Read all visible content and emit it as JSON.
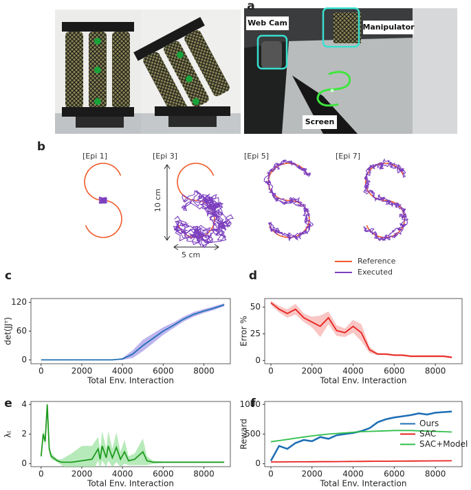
{
  "panel_labels": [
    "a",
    "b",
    "c",
    "d",
    "e",
    "f"
  ],
  "photo": {
    "labels": [
      "Web Cam",
      "Manipulator",
      "Screen"
    ]
  },
  "trajectories": {
    "episodes": [
      "[Epi 1]",
      "[Epi 3]",
      "[Epi 5]",
      "[Epi 7]"
    ],
    "height_label": "10 cm",
    "width_label": "5 cm",
    "legend": [
      {
        "name": "Reference",
        "color": "#f05a28"
      },
      {
        "name": "Executed",
        "color": "#7b3fbf"
      }
    ]
  },
  "chart_data": [
    {
      "type": "line",
      "xlabel": "Total Env. Interaction",
      "ylabel": "det(JJᵀ)",
      "x": [
        0,
        500,
        1000,
        1500,
        2000,
        2500,
        3000,
        3500,
        4000,
        4500,
        5000,
        5500,
        6000,
        6500,
        7000,
        7500,
        8000,
        8500,
        9000
      ],
      "series": [
        {
          "color": "#1f6fb5",
          "band_color": "#a89be8",
          "values": [
            0,
            0,
            0,
            0,
            0,
            0,
            0,
            0,
            2,
            12,
            30,
            45,
            60,
            72,
            85,
            95,
            102,
            108,
            115
          ],
          "spread": [
            0,
            0,
            0,
            0,
            0,
            0,
            0,
            0,
            2,
            8,
            12,
            10,
            8,
            6,
            5,
            5,
            4,
            4,
            3
          ]
        }
      ],
      "xlim": [
        -500,
        9300
      ],
      "xticks": [
        0,
        2000,
        4000,
        6000,
        8000
      ],
      "ylim": [
        -8,
        128
      ],
      "yticks": [
        0,
        60,
        120
      ]
    },
    {
      "type": "line",
      "xlabel": "Total Env. Interaction",
      "ylabel": "Error %",
      "x": [
        0,
        400,
        800,
        1200,
        1600,
        2000,
        2400,
        2800,
        3200,
        3600,
        4000,
        4400,
        4800,
        5200,
        5600,
        6000,
        6400,
        6800,
        7200,
        7600,
        8000,
        8400,
        8800
      ],
      "series": [
        {
          "color": "#e8201c",
          "band_color": "#f7b3b0",
          "values": [
            54,
            48,
            44,
            48,
            40,
            36,
            32,
            40,
            28,
            26,
            32,
            26,
            10,
            6,
            6,
            5,
            5,
            4,
            4,
            4,
            4,
            4,
            3
          ],
          "spread": [
            2,
            3,
            4,
            5,
            4,
            5,
            10,
            6,
            5,
            4,
            6,
            8,
            3,
            1,
            1,
            1,
            1,
            1,
            1,
            1,
            1,
            1,
            1
          ]
        }
      ],
      "xlim": [
        -300,
        9300
      ],
      "xticks": [
        0,
        2000,
        4000,
        6000,
        8000
      ],
      "ylim": [
        -3,
        58
      ],
      "yticks": [
        0,
        25,
        50
      ]
    },
    {
      "type": "line",
      "xlabel": "Total Env. Interaction",
      "ylabel": "λₜ",
      "x": [
        0,
        100,
        200,
        300,
        400,
        500,
        800,
        1000,
        1500,
        2000,
        2500,
        2800,
        2900,
        3000,
        3200,
        3300,
        3500,
        3700,
        3900,
        4100,
        4300,
        4600,
        5000,
        5200,
        5500,
        6000,
        7000,
        8000,
        9000
      ],
      "series": [
        {
          "color": "#1e9a1e",
          "band_color": "#9fe3a3",
          "values": [
            0.5,
            2,
            1.5,
            4,
            1,
            0.5,
            0.2,
            0.1,
            0.1,
            0.2,
            0.3,
            1,
            0.3,
            1.2,
            0.4,
            1.2,
            0.4,
            1.1,
            0.3,
            0.8,
            0.2,
            0.3,
            0.8,
            0.2,
            0.1,
            0.1,
            0.1,
            0.1,
            0.1
          ],
          "spread": [
            0.2,
            0.3,
            0.3,
            0.2,
            0.3,
            0.2,
            0.1,
            0.2,
            0.6,
            1,
            0.9,
            0.8,
            0.6,
            1,
            0.6,
            1,
            0.6,
            1,
            0.5,
            0.8,
            0.3,
            0.4,
            0.9,
            0.3,
            0.1,
            0.05,
            0.05,
            0.05,
            0.05
          ]
        }
      ],
      "xlim": [
        -500,
        9300
      ],
      "xticks": [
        0,
        2000,
        4000,
        6000,
        8000
      ],
      "ylim": [
        -0.2,
        4.2
      ],
      "yticks": [
        0,
        2,
        4
      ]
    },
    {
      "type": "line",
      "xlabel": "Total Env. Interaction",
      "ylabel": "Reward",
      "legend": "center right",
      "x": [
        0,
        400,
        800,
        1200,
        1600,
        2000,
        2400,
        2800,
        3200,
        3600,
        4000,
        4400,
        4800,
        5200,
        5600,
        6000,
        6400,
        6800,
        7200,
        7600,
        8000,
        8400,
        8800
      ],
      "series": [
        {
          "name": "Ours",
          "color": "#1f6fb5",
          "values": [
            50,
            300,
            250,
            350,
            400,
            380,
            450,
            420,
            480,
            500,
            520,
            550,
            600,
            700,
            750,
            780,
            800,
            820,
            850,
            830,
            860,
            870,
            880
          ]
        },
        {
          "name": "SAC",
          "color": "#e8201c",
          "values": [
            30,
            30,
            31,
            32,
            32,
            33,
            34,
            35,
            36,
            37,
            38,
            39,
            40,
            41,
            42,
            43,
            44,
            45,
            46,
            47,
            48,
            49,
            50
          ]
        },
        {
          "name": "SAC+Model",
          "color": "#2fbf4a",
          "values": [
            370,
            390,
            410,
            430,
            450,
            470,
            485,
            500,
            510,
            520,
            530,
            540,
            545,
            550,
            555,
            560,
            560,
            560,
            555,
            550,
            545,
            540,
            535
          ]
        }
      ],
      "xlim": [
        -300,
        9300
      ],
      "xticks": [
        0,
        2000,
        4000,
        6000,
        8000
      ],
      "ylim": [
        -50,
        1050
      ],
      "yticks": [
        0,
        500,
        1000
      ]
    }
  ]
}
